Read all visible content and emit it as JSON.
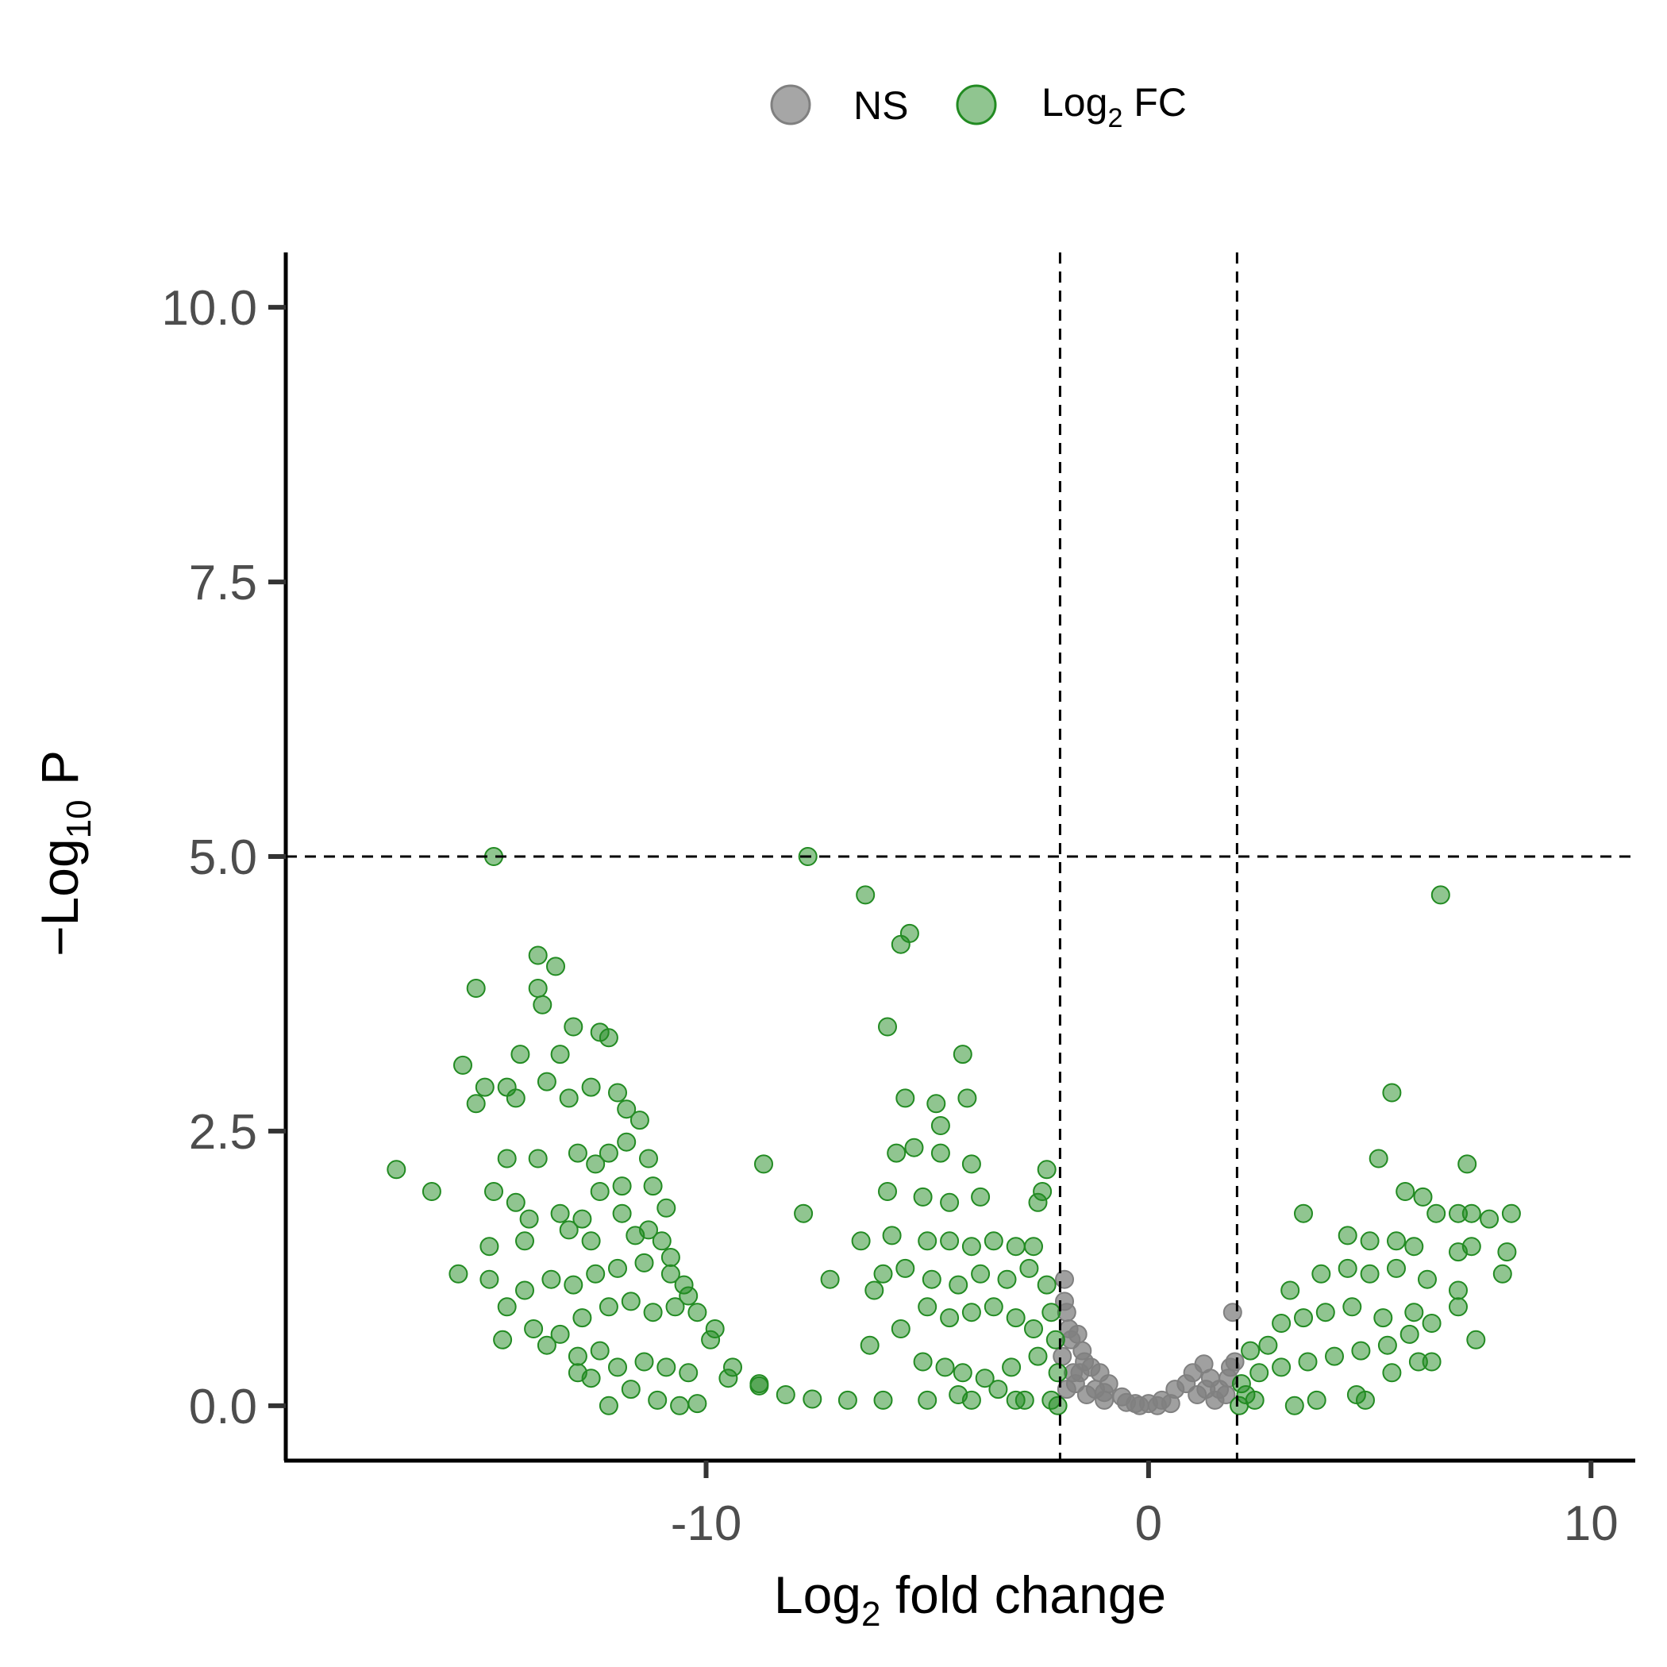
{
  "chart_data": {
    "type": "scatter",
    "xlabel": {
      "main": "Log",
      "sub": "2",
      "rest": " fold change"
    },
    "ylabel": {
      "main": "−Log",
      "sub": "10",
      "rest": " P"
    },
    "xlim": [
      -19.5,
      11
    ],
    "ylim": [
      -0.5,
      10.5
    ],
    "x_ticks": [
      -10,
      0,
      10
    ],
    "x_tick_labels": [
      "-10",
      "0",
      "10"
    ],
    "y_ticks": [
      0,
      2.5,
      5,
      7.5,
      10
    ],
    "y_tick_labels": [
      "0.0",
      "2.5",
      "5.0",
      "7.5",
      "10.0"
    ],
    "cutoffs": {
      "fc": [
        -2,
        2
      ],
      "p": 5
    },
    "grid": false,
    "legend_position": "top",
    "legend": [
      {
        "key": "NS",
        "label": "NS",
        "label_sub": "",
        "label_rest": "",
        "color": "#808080"
      },
      {
        "key": "FC",
        "label": "Log",
        "label_sub": "2",
        "label_rest": " FC",
        "color": "#228B22"
      }
    ],
    "series": [
      {
        "name": "NS",
        "color": "#808080",
        "points": [
          [
            -1.9,
            1.15
          ],
          [
            -1.9,
            0.95
          ],
          [
            -1.85,
            0.85
          ],
          [
            -1.8,
            0.7
          ],
          [
            -1.75,
            0.6
          ],
          [
            -1.6,
            0.65
          ],
          [
            -1.5,
            0.5
          ],
          [
            -1.45,
            0.4
          ],
          [
            -1.3,
            0.35
          ],
          [
            -1.1,
            0.3
          ],
          [
            -0.9,
            0.2
          ],
          [
            -1.7,
            0.3
          ],
          [
            -1.95,
            0.45
          ],
          [
            -1.65,
            0.2
          ],
          [
            -1.2,
            0.15
          ],
          [
            -0.6,
            0.08
          ],
          [
            -0.3,
            0.02
          ],
          [
            0,
            0.02
          ],
          [
            0.3,
            0.05
          ],
          [
            0.6,
            0.15
          ],
          [
            0.85,
            0.2
          ],
          [
            1.0,
            0.3
          ],
          [
            1.25,
            0.38
          ],
          [
            1.4,
            0.25
          ],
          [
            1.6,
            0.15
          ],
          [
            1.75,
            0.1
          ],
          [
            1.85,
            0.35
          ],
          [
            1.9,
            0.85
          ],
          [
            1.95,
            0.4
          ],
          [
            -1.4,
            0.1
          ],
          [
            1.1,
            0.1
          ],
          [
            0.5,
            0.02
          ],
          [
            -1.0,
            0.05
          ],
          [
            -0.5,
            0.03
          ],
          [
            1.5,
            0.05
          ],
          [
            -1.85,
            0.15
          ],
          [
            1.8,
            0.25
          ],
          [
            -1.55,
            0.3
          ],
          [
            -1.0,
            0.12
          ],
          [
            1.3,
            0.15
          ],
          [
            0.2,
            0.0
          ],
          [
            -0.2,
            0.0
          ]
        ]
      },
      {
        "name": "Log2 FC",
        "color": "#228B22",
        "points": [
          [
            -14.8,
            5.0
          ],
          [
            -7.7,
            5.0
          ],
          [
            -6.4,
            4.65
          ],
          [
            -5.4,
            4.3
          ],
          [
            -5.6,
            4.2
          ],
          [
            6.6,
            4.65
          ],
          [
            -13.8,
            4.1
          ],
          [
            -13.4,
            4.0
          ],
          [
            -15.2,
            3.8
          ],
          [
            -13.8,
            3.8
          ],
          [
            -13.7,
            3.65
          ],
          [
            -13.0,
            3.45
          ],
          [
            -12.4,
            3.4
          ],
          [
            -12.2,
            3.35
          ],
          [
            -15.5,
            3.1
          ],
          [
            -14.2,
            3.2
          ],
          [
            -13.3,
            3.2
          ],
          [
            -5.9,
            3.45
          ],
          [
            -4.2,
            3.2
          ],
          [
            -15.0,
            2.9
          ],
          [
            -14.5,
            2.9
          ],
          [
            -13.6,
            2.95
          ],
          [
            -13.1,
            2.8
          ],
          [
            -12.6,
            2.9
          ],
          [
            -12.0,
            2.85
          ],
          [
            -11.8,
            2.7
          ],
          [
            -15.2,
            2.75
          ],
          [
            -14.3,
            2.8
          ],
          [
            -5.5,
            2.8
          ],
          [
            -4.8,
            2.75
          ],
          [
            -4.1,
            2.8
          ],
          [
            -4.7,
            2.55
          ],
          [
            5.5,
            2.85
          ],
          [
            -17.0,
            2.15
          ],
          [
            -14.5,
            2.25
          ],
          [
            -13.8,
            2.25
          ],
          [
            -12.9,
            2.3
          ],
          [
            -12.5,
            2.2
          ],
          [
            -12.2,
            2.3
          ],
          [
            -11.8,
            2.4
          ],
          [
            -11.5,
            2.6
          ],
          [
            -11.3,
            2.25
          ],
          [
            -8.7,
            2.2
          ],
          [
            -5.3,
            2.35
          ],
          [
            -5.7,
            2.3
          ],
          [
            -4.7,
            2.3
          ],
          [
            -4.0,
            2.2
          ],
          [
            -2.3,
            2.15
          ],
          [
            5.2,
            2.25
          ],
          [
            7.2,
            2.2
          ],
          [
            -16.2,
            1.95
          ],
          [
            -14.8,
            1.95
          ],
          [
            -14.3,
            1.85
          ],
          [
            -14.0,
            1.7
          ],
          [
            -13.3,
            1.75
          ],
          [
            -12.8,
            1.7
          ],
          [
            -12.4,
            1.95
          ],
          [
            -11.9,
            2.0
          ],
          [
            -11.2,
            2.0
          ],
          [
            -10.9,
            1.8
          ],
          [
            -7.8,
            1.75
          ],
          [
            -5.9,
            1.95
          ],
          [
            -5.1,
            1.9
          ],
          [
            -4.5,
            1.85
          ],
          [
            -3.8,
            1.9
          ],
          [
            -2.4,
            1.95
          ],
          [
            -2.5,
            1.85
          ],
          [
            3.5,
            1.75
          ],
          [
            5.8,
            1.95
          ],
          [
            6.2,
            1.9
          ],
          [
            6.5,
            1.75
          ],
          [
            7.0,
            1.75
          ],
          [
            7.3,
            1.75
          ],
          [
            7.7,
            1.7
          ],
          [
            8.2,
            1.75
          ],
          [
            -14.9,
            1.45
          ],
          [
            -14.1,
            1.5
          ],
          [
            -13.1,
            1.6
          ],
          [
            -12.6,
            1.5
          ],
          [
            -11.6,
            1.55
          ],
          [
            -11.0,
            1.5
          ],
          [
            -6.5,
            1.5
          ],
          [
            -5.8,
            1.55
          ],
          [
            -5.0,
            1.5
          ],
          [
            -4.5,
            1.5
          ],
          [
            -4.0,
            1.45
          ],
          [
            -3.5,
            1.5
          ],
          [
            -3.0,
            1.45
          ],
          [
            -2.6,
            1.45
          ],
          [
            4.5,
            1.55
          ],
          [
            5.0,
            1.5
          ],
          [
            5.6,
            1.5
          ],
          [
            6.0,
            1.45
          ],
          [
            7.0,
            1.4
          ],
          [
            7.3,
            1.45
          ],
          [
            8.1,
            1.4
          ],
          [
            -15.6,
            1.2
          ],
          [
            -14.9,
            1.15
          ],
          [
            -14.1,
            1.05
          ],
          [
            -13.5,
            1.15
          ],
          [
            -13.0,
            1.1
          ],
          [
            -12.5,
            1.2
          ],
          [
            -12.0,
            1.25
          ],
          [
            -11.4,
            1.3
          ],
          [
            -10.8,
            1.2
          ],
          [
            -10.5,
            1.1
          ],
          [
            -7.2,
            1.15
          ],
          [
            -6.2,
            1.05
          ],
          [
            -6.0,
            1.2
          ],
          [
            -5.5,
            1.25
          ],
          [
            -4.9,
            1.15
          ],
          [
            -4.3,
            1.1
          ],
          [
            -3.8,
            1.2
          ],
          [
            -3.2,
            1.15
          ],
          [
            -2.7,
            1.25
          ],
          [
            -2.3,
            1.1
          ],
          [
            3.2,
            1.05
          ],
          [
            3.9,
            1.2
          ],
          [
            4.5,
            1.25
          ],
          [
            5.0,
            1.2
          ],
          [
            5.6,
            1.25
          ],
          [
            6.3,
            1.15
          ],
          [
            7.0,
            1.05
          ],
          [
            8.0,
            1.2
          ],
          [
            -14.5,
            0.9
          ],
          [
            -13.9,
            0.7
          ],
          [
            -13.3,
            0.65
          ],
          [
            -12.8,
            0.8
          ],
          [
            -12.2,
            0.9
          ],
          [
            -11.7,
            0.95
          ],
          [
            -11.2,
            0.85
          ],
          [
            -10.7,
            0.9
          ],
          [
            -10.2,
            0.85
          ],
          [
            -9.8,
            0.7
          ],
          [
            -5.6,
            0.7
          ],
          [
            -5.0,
            0.9
          ],
          [
            -4.5,
            0.8
          ],
          [
            -4.0,
            0.85
          ],
          [
            -3.5,
            0.9
          ],
          [
            -3.0,
            0.8
          ],
          [
            -2.6,
            0.7
          ],
          [
            -2.2,
            0.85
          ],
          [
            2.3,
            0.5
          ],
          [
            2.7,
            0.55
          ],
          [
            3.0,
            0.75
          ],
          [
            3.5,
            0.8
          ],
          [
            4.0,
            0.85
          ],
          [
            4.6,
            0.9
          ],
          [
            5.3,
            0.8
          ],
          [
            6.0,
            0.85
          ],
          [
            6.4,
            0.75
          ],
          [
            7.0,
            0.9
          ],
          [
            -14.6,
            0.6
          ],
          [
            -13.6,
            0.55
          ],
          [
            -12.9,
            0.45
          ],
          [
            -12.4,
            0.5
          ],
          [
            -12.0,
            0.35
          ],
          [
            -11.4,
            0.4
          ],
          [
            -10.9,
            0.35
          ],
          [
            -10.4,
            0.3
          ],
          [
            -9.5,
            0.25
          ],
          [
            -8.8,
            0.18
          ],
          [
            -6.3,
            0.55
          ],
          [
            -5.1,
            0.4
          ],
          [
            -4.6,
            0.35
          ],
          [
            -4.2,
            0.3
          ],
          [
            -3.7,
            0.25
          ],
          [
            -3.1,
            0.35
          ],
          [
            -2.5,
            0.45
          ],
          [
            -2.1,
            0.6
          ],
          [
            2.1,
            0.2
          ],
          [
            2.5,
            0.3
          ],
          [
            3.0,
            0.35
          ],
          [
            3.6,
            0.4
          ],
          [
            4.2,
            0.45
          ],
          [
            4.8,
            0.5
          ],
          [
            5.4,
            0.55
          ],
          [
            5.9,
            0.65
          ],
          [
            6.4,
            0.4
          ],
          [
            7.4,
            0.6
          ],
          [
            -12.9,
            0.3
          ],
          [
            -12.6,
            0.25
          ],
          [
            -12.2,
            0.0
          ],
          [
            -11.7,
            0.15
          ],
          [
            -11.1,
            0.05
          ],
          [
            -10.6,
            0.0
          ],
          [
            -10.2,
            0.02
          ],
          [
            -4.3,
            0.1
          ],
          [
            -3.4,
            0.15
          ],
          [
            -2.8,
            0.05
          ],
          [
            2.4,
            0.05
          ],
          [
            3.3,
            0.0
          ],
          [
            3.8,
            0.05
          ],
          [
            4.7,
            0.1
          ],
          [
            4.9,
            0.05
          ],
          [
            5.5,
            0.3
          ],
          [
            6.1,
            0.4
          ],
          [
            2.2,
            0.1
          ],
          [
            -2.05,
            0.3
          ],
          [
            -2.05,
            0.0
          ],
          [
            2.05,
            0.0
          ],
          [
            -11.9,
            1.75
          ],
          [
            -11.3,
            1.6
          ],
          [
            -10.8,
            1.35
          ],
          [
            -10.4,
            1.0
          ],
          [
            -9.9,
            0.6
          ],
          [
            -9.4,
            0.35
          ],
          [
            -8.8,
            0.2
          ],
          [
            -8.2,
            0.1
          ],
          [
            -7.6,
            0.06
          ],
          [
            -6.8,
            0.05
          ],
          [
            -6.0,
            0.05
          ],
          [
            -5.0,
            0.05
          ],
          [
            -4.0,
            0.05
          ],
          [
            -3.0,
            0.05
          ],
          [
            -2.2,
            0.05
          ]
        ]
      }
    ]
  }
}
